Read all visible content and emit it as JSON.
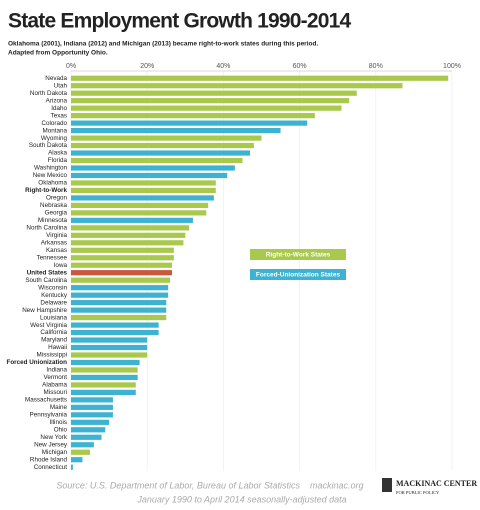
{
  "chart_data": {
    "type": "barh",
    "title": "State Employment Growth 1990-2014",
    "subtitle": [
      "Oklahoma (2001), Indiana (2012) and Michigan (2013) became right-to-work states during this period.",
      "Adapted from Opportunity Ohio."
    ],
    "categories": [
      "Nevada",
      "Utah",
      "North Dakota",
      "Arizona",
      "Idaho",
      "Texas",
      "Colorado",
      "Montana",
      "Wyoming",
      "South Dakota",
      "Alaska",
      "Florida",
      "Washington",
      "New Mexico",
      "Oklahoma",
      "Right-to-Work",
      "Oregon",
      "Nebraska",
      "Georgia",
      "Minnesota",
      "North Carolina",
      "Virginia",
      "Arkansas",
      "Kansas",
      "Tennessee",
      "Iowa",
      "United States",
      "South Carolina",
      "Wisconsin",
      "Kentucky",
      "Delaware",
      "New Hampshire",
      "Louisiana",
      "West Virginia",
      "California",
      "Maryland",
      "Hawaii",
      "Mississippi",
      "Forced Unionization",
      "Indiana",
      "Vermont",
      "Alabama",
      "Missouri",
      "Massachusetts",
      "Maine",
      "Pennsylvania",
      "Illinois",
      "Ohio",
      "New York",
      "New Jersey",
      "Michigan",
      "Rhode Island",
      "Connecticut"
    ],
    "values": [
      99,
      87,
      75,
      73,
      71,
      64,
      62,
      55,
      50,
      48,
      47,
      45,
      43,
      41,
      38,
      38,
      37.5,
      36,
      35.5,
      32,
      31,
      30,
      29.5,
      27,
      27,
      26.5,
      26.5,
      26,
      25.5,
      25.5,
      25,
      25,
      25,
      23,
      23,
      20,
      20,
      20,
      18,
      17.5,
      17.5,
      17,
      17,
      11,
      11,
      11,
      10,
      9,
      8,
      6,
      5,
      3,
      0.5
    ],
    "colors": [
      "#a9c94c",
      "#a9c94c",
      "#a9c94c",
      "#a9c94c",
      "#a9c94c",
      "#a9c94c",
      "#3db3d1",
      "#3db3d1",
      "#a9c94c",
      "#a9c94c",
      "#3db3d1",
      "#a9c94c",
      "#3db3d1",
      "#3db3d1",
      "#a9c94c",
      "#a9c94c",
      "#3db3d1",
      "#a9c94c",
      "#a9c94c",
      "#3db3d1",
      "#a9c94c",
      "#a9c94c",
      "#a9c94c",
      "#a9c94c",
      "#a9c94c",
      "#a9c94c",
      "#c9573b",
      "#a9c94c",
      "#3db3d1",
      "#3db3d1",
      "#3db3d1",
      "#3db3d1",
      "#a9c94c",
      "#3db3d1",
      "#3db3d1",
      "#3db3d1",
      "#3db3d1",
      "#a9c94c",
      "#3db3d1",
      "#a9c94c",
      "#3db3d1",
      "#a9c94c",
      "#3db3d1",
      "#3db3d1",
      "#3db3d1",
      "#3db3d1",
      "#3db3d1",
      "#3db3d1",
      "#3db3d1",
      "#3db3d1",
      "#a9c94c",
      "#3db3d1",
      "#3db3d1"
    ],
    "bold_categories": [
      15,
      26,
      38
    ],
    "xlim": [
      0,
      100
    ],
    "xticks": [
      {
        "value": 0,
        "label": "0%"
      },
      {
        "value": 20,
        "label": "20%"
      },
      {
        "value": 40,
        "label": "40%"
      },
      {
        "value": 60,
        "label": "60%"
      },
      {
        "value": 80,
        "label": "80%"
      },
      {
        "value": 100,
        "label": "100%"
      }
    ],
    "grid": true,
    "legend": [
      {
        "name": "Right-to-Work States",
        "color": "#a9c94c"
      },
      {
        "name": "Forced-Unionization States",
        "color": "#3db3d1"
      }
    ],
    "source": "Source: U.S. Department of Labor, Bureau of Labor Statistics",
    "website": "mackinac.org",
    "note": "January 1990 to April 2014 seasonally-adjusted data",
    "logo": [
      "MACKINAC CENTER",
      "FOR PUBLIC POLICY"
    ]
  }
}
